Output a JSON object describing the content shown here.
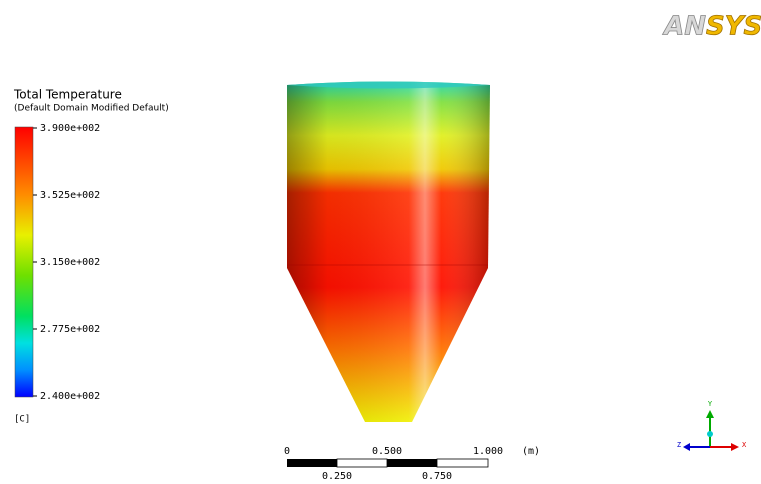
{
  "logo": {
    "first": "AN",
    "second": "SYS"
  },
  "legend": {
    "title": "Total Temperature",
    "subtitle": "(Default Domain Modified Default)",
    "labels": [
      "3.900e+002",
      "3.525e+002",
      "3.150e+002",
      "2.775e+002",
      "2.400e+002"
    ],
    "unit": "[C]"
  },
  "scale_bar": {
    "top_labels": [
      "0",
      "0.500",
      "1.000"
    ],
    "unit": "(m)",
    "bottom_labels": [
      "0.250",
      "0.750"
    ]
  },
  "triad": {
    "y": "Y",
    "z": "Z",
    "x": "X"
  }
}
